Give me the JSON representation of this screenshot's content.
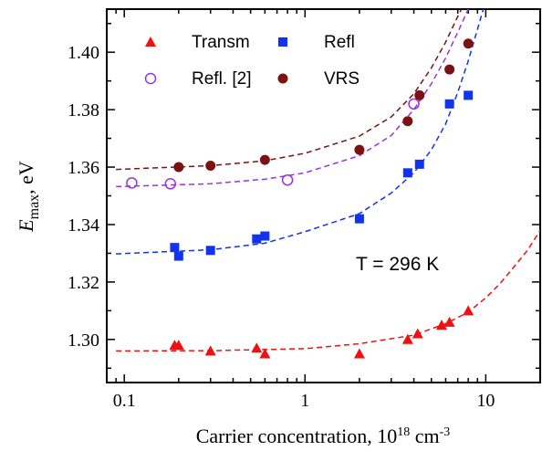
{
  "chart_data": {
    "type": "scatter",
    "xscale": "log",
    "xlim": [
      0.08,
      20
    ],
    "ylim": [
      1.285,
      1.415
    ],
    "yticks": [
      1.3,
      1.32,
      1.34,
      1.36,
      1.38,
      1.4
    ],
    "ytick_labels": [
      "1.30",
      "1.32",
      "1.34",
      "1.36",
      "1.38",
      "1.40"
    ],
    "xticks": [
      0.1,
      1,
      10
    ],
    "xtick_labels": [
      "0.1",
      "1",
      "10"
    ],
    "xlabel": "Carrier concentration, 10",
    "xlabel_sup1": "18",
    "xlabel_unit": " cm",
    "xlabel_sup2": "-3",
    "ylabel_main": "E",
    "ylabel_sub": "max",
    "ylabel_unit": ", eV",
    "annotation": "T = 296 K",
    "grid": false,
    "legend_position": "top",
    "series": [
      {
        "name": "Transm",
        "marker": "triangle",
        "color": "#ee1111",
        "x": [
          0.19,
          0.2,
          0.3,
          0.54,
          0.6,
          2.0,
          3.7,
          4.2,
          5.7,
          6.3,
          8.0
        ],
        "y": [
          1.298,
          1.298,
          1.296,
          1.297,
          1.295,
          1.295,
          1.3,
          1.302,
          1.305,
          1.306,
          1.31
        ],
        "fit": {
          "x": [
            0.09,
            0.3,
            1,
            2,
            4,
            6,
            8,
            10,
            12,
            14,
            17,
            20
          ],
          "y": [
            1.296,
            1.2961,
            1.2968,
            1.2985,
            1.3015,
            1.3055,
            1.3095,
            1.3145,
            1.3195,
            1.3245,
            1.331,
            1.338
          ]
        }
      },
      {
        "name": "Refl",
        "marker": "square",
        "color": "#1133ee",
        "x": [
          0.19,
          0.2,
          0.3,
          0.54,
          0.6,
          2.0,
          3.7,
          4.3,
          6.3,
          8.0
        ],
        "y": [
          1.332,
          1.329,
          1.331,
          1.335,
          1.336,
          1.342,
          1.358,
          1.361,
          1.382,
          1.385
        ],
        "fit": {
          "x": [
            0.09,
            0.3,
            0.6,
            1,
            2,
            3,
            4,
            5,
            6,
            7,
            8,
            9,
            10
          ],
          "y": [
            1.3298,
            1.3312,
            1.3335,
            1.3375,
            1.3438,
            1.351,
            1.358,
            1.366,
            1.375,
            1.386,
            1.397,
            1.408,
            1.418
          ]
        }
      },
      {
        "name": "Refl. [2]",
        "marker": "open-circle",
        "color": "#9933dd",
        "x": [
          0.11,
          0.18,
          0.8,
          4.0
        ],
        "y": [
          1.3545,
          1.3542,
          1.3555,
          1.382
        ],
        "fit": {
          "x": [
            0.09,
            0.3,
            0.6,
            1,
            2,
            3,
            4,
            5,
            6,
            7,
            8,
            8.6
          ],
          "y": [
            1.3532,
            1.3542,
            1.3558,
            1.358,
            1.364,
            1.371,
            1.38,
            1.389,
            1.398,
            1.407,
            1.415,
            1.4195
          ]
        }
      },
      {
        "name": "VRS",
        "marker": "filled-circle",
        "color": "#7a1212",
        "x": [
          0.2,
          0.3,
          0.6,
          2.0,
          3.7,
          4.3,
          6.3,
          8.0
        ],
        "y": [
          1.36,
          1.3605,
          1.3625,
          1.366,
          1.376,
          1.385,
          1.394,
          1.403
        ],
        "fit": {
          "x": [
            0.09,
            0.3,
            0.6,
            1,
            2,
            3,
            4,
            5,
            6,
            7,
            8,
            8.3
          ],
          "y": [
            1.3592,
            1.3605,
            1.3622,
            1.3648,
            1.3708,
            1.3775,
            1.3855,
            1.3945,
            1.4035,
            1.4125,
            1.4195,
            1.4215
          ]
        }
      }
    ]
  }
}
